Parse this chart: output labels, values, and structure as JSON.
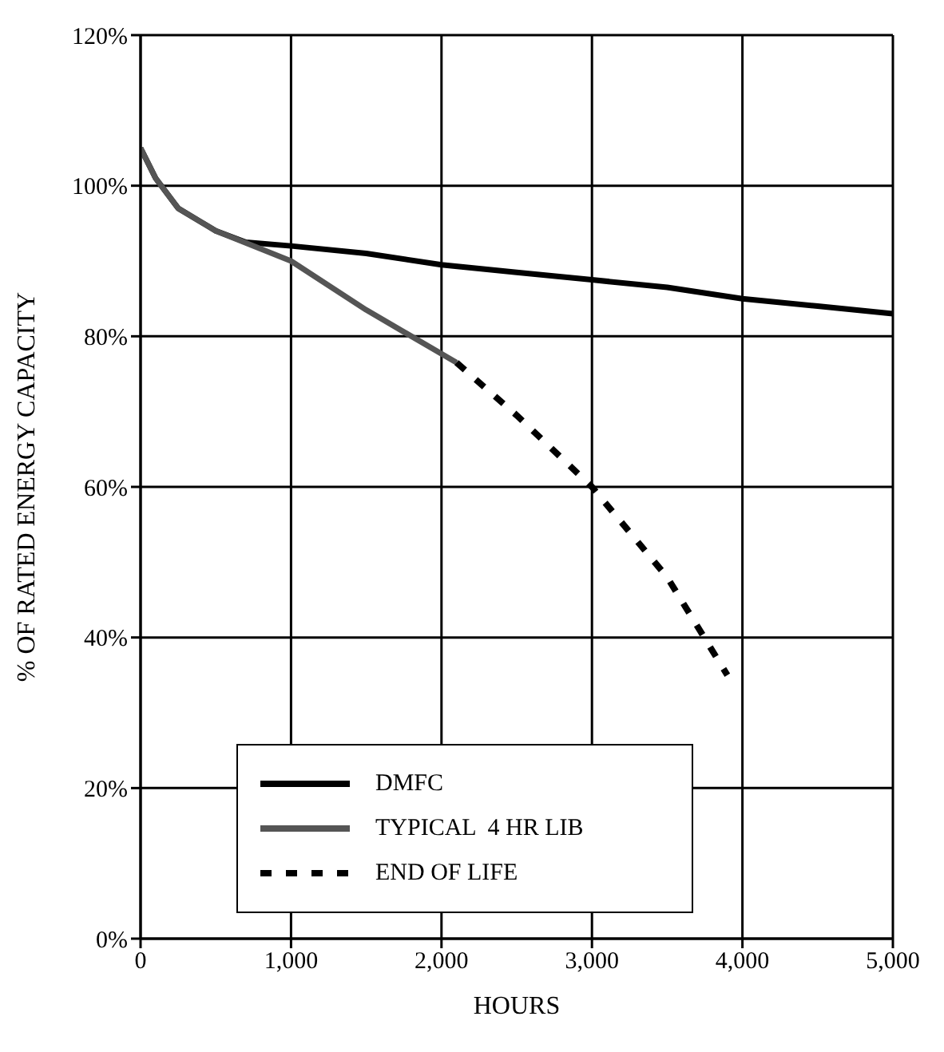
{
  "chart_data": {
    "type": "line",
    "xlabel": "HOURS",
    "ylabel": "% OF RATED ENERGY CAPACITY",
    "xlim": [
      0,
      5000
    ],
    "xticks": [
      0,
      {
        "value": 1000,
        "label": "1,000"
      },
      {
        "value": 2000,
        "label": "2,000"
      },
      {
        "value": 3000,
        "label": "3,000"
      },
      {
        "value": 4000,
        "label": "4,000"
      },
      {
        "value": 5000,
        "label": "5,000"
      }
    ],
    "ylim": [
      0,
      120
    ],
    "yticks": [
      {
        "value": 0,
        "label": "0%"
      },
      {
        "value": 20,
        "label": "20%"
      },
      {
        "value": 40,
        "label": "40%"
      },
      {
        "value": 60,
        "label": "60%"
      },
      {
        "value": 80,
        "label": "80%"
      },
      {
        "value": 100,
        "label": "100%"
      },
      {
        "value": 120,
        "label": "120%"
      }
    ],
    "grid": true,
    "legend": "bottom",
    "marker": "none",
    "series": [
      {
        "name": "DMFC",
        "color": "#000000",
        "line_style": "solid",
        "x": [
          0,
          100,
          250,
          500,
          700,
          1000,
          1500,
          2000,
          2500,
          3000,
          3500,
          4000,
          4500,
          5000
        ],
        "values": [
          105,
          101,
          97,
          94,
          92.5,
          92,
          91,
          89.5,
          88.5,
          87.5,
          86.5,
          85,
          84,
          83
        ]
      },
      {
        "name": "TYPICAL  4 HR LIB",
        "color": "#555555",
        "line_style": "solid",
        "x": [
          0,
          100,
          250,
          500,
          1000,
          1500,
          2100
        ],
        "values": [
          105,
          101,
          97,
          94,
          90,
          83.5,
          76.5
        ]
      },
      {
        "name": "END OF LIFE",
        "color": "#000000",
        "line_style": "dashed",
        "x": [
          2100,
          2500,
          3000,
          3500,
          3900
        ],
        "values": [
          76.5,
          69.5,
          60,
          48,
          35
        ]
      }
    ]
  }
}
